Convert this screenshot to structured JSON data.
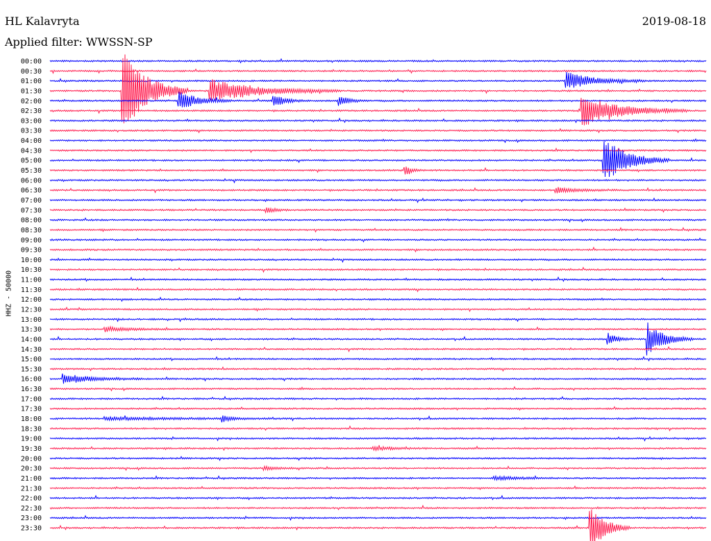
{
  "header": {
    "station": "HL Kalavryta",
    "date": "2019-08-18",
    "filter": "Applied filter: WWSSN-SP"
  },
  "chart_data": {
    "type": "line",
    "title": "HL Kalavryta",
    "subtitle": "Applied filter: WWSSN-SP",
    "date": "2019-08-18",
    "ylabel": "HHZ - 50000",
    "xlabel": "",
    "row_labels": [
      "00:00",
      "00:30",
      "01:00",
      "01:30",
      "02:00",
      "02:30",
      "03:00",
      "03:30",
      "04:00",
      "04:30",
      "05:00",
      "05:30",
      "06:00",
      "06:30",
      "07:00",
      "07:30",
      "08:00",
      "08:30",
      "09:00",
      "09:30",
      "10:00",
      "10:30",
      "11:00",
      "11:30",
      "12:00",
      "12:30",
      "13:00",
      "13:30",
      "14:00",
      "14:30",
      "15:00",
      "15:30",
      "16:00",
      "16:30",
      "17:00",
      "17:30",
      "18:00",
      "18:30",
      "19:00",
      "19:30",
      "20:00",
      "20:30",
      "21:00",
      "21:30",
      "22:00",
      "22:30",
      "23:00",
      "23:30"
    ],
    "row_colors": [
      "#0000ff",
      "#ff1e50"
    ],
    "minutes_per_row": 30,
    "grid": false,
    "legend": "none",
    "events": [
      {
        "row": "01:30",
        "minute": 3.3,
        "amplitude": 4.5,
        "duration": 1.0
      },
      {
        "row": "01:30",
        "minute": 7.3,
        "amplitude": 1.2,
        "duration": 2.0
      },
      {
        "row": "02:00",
        "minute": 5.9,
        "amplitude": 1.0,
        "duration": 0.8
      },
      {
        "row": "02:00",
        "minute": 10.2,
        "amplitude": 0.7,
        "duration": 0.5
      },
      {
        "row": "02:00",
        "minute": 13.2,
        "amplitude": 0.6,
        "duration": 0.4
      },
      {
        "row": "01:00",
        "minute": 23.6,
        "amplitude": 0.9,
        "duration": 1.2
      },
      {
        "row": "02:30",
        "minute": 24.3,
        "amplitude": 1.6,
        "duration": 1.6
      },
      {
        "row": "05:00",
        "minute": 25.3,
        "amplitude": 2.4,
        "duration": 1.0
      },
      {
        "row": "05:30",
        "minute": 16.2,
        "amplitude": 0.5,
        "duration": 0.3
      },
      {
        "row": "06:30",
        "minute": 23.1,
        "amplitude": 0.3,
        "duration": 1.0
      },
      {
        "row": "07:30",
        "minute": 9.9,
        "amplitude": 0.3,
        "duration": 0.4
      },
      {
        "row": "13:30",
        "minute": 2.5,
        "amplitude": 0.25,
        "duration": 1.0
      },
      {
        "row": "14:00",
        "minute": 25.5,
        "amplitude": 0.6,
        "duration": 0.4
      },
      {
        "row": "14:00",
        "minute": 27.3,
        "amplitude": 1.8,
        "duration": 0.7
      },
      {
        "row": "16:00",
        "minute": 0.6,
        "amplitude": 0.5,
        "duration": 1.2
      },
      {
        "row": "18:00",
        "minute": 2.5,
        "amplitude": 0.15,
        "duration": 3.0
      },
      {
        "row": "18:00",
        "minute": 7.9,
        "amplitude": 0.3,
        "duration": 0.4
      },
      {
        "row": "19:30",
        "minute": 14.8,
        "amplitude": 0.2,
        "duration": 0.8
      },
      {
        "row": "20:30",
        "minute": 9.8,
        "amplitude": 0.2,
        "duration": 0.6
      },
      {
        "row": "21:00",
        "minute": 20.3,
        "amplitude": 0.2,
        "duration": 1.0
      },
      {
        "row": "23:30",
        "minute": 24.7,
        "amplitude": 2.6,
        "duration": 0.6
      }
    ]
  }
}
